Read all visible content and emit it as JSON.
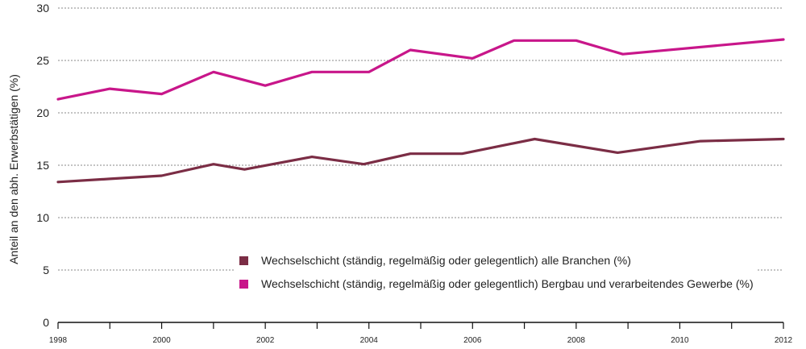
{
  "chart_data": {
    "type": "line",
    "title": "",
    "xlabel": "",
    "ylabel": "Anteil an den abh. Erwerbstätigen (%)",
    "x_range": [
      1998,
      2012
    ],
    "ylim": [
      0,
      30
    ],
    "y_ticks": [
      0,
      5,
      10,
      15,
      20,
      25,
      30
    ],
    "x_tick_labels": [
      "1998",
      "2000",
      "2002",
      "2004",
      "2006",
      "2008",
      "2010",
      "2012"
    ],
    "grid": "horizontal dotted",
    "legend_position": "bottom-center inside plot",
    "series": [
      {
        "name": "Wechselschicht (ständig, regelmäßig oder gelegentlich) alle Branchen (%)",
        "color": "#7b2d45",
        "points": [
          {
            "x": 1998,
            "y": 13.4
          },
          {
            "x": 1999,
            "y": 13.7
          },
          {
            "x": 2000,
            "y": 14.0
          },
          {
            "x": 2001,
            "y": 15.1
          },
          {
            "x": 2001.6,
            "y": 14.6
          },
          {
            "x": 2002.9,
            "y": 15.8
          },
          {
            "x": 2003.9,
            "y": 15.1
          },
          {
            "x": 2004.8,
            "y": 16.1
          },
          {
            "x": 2005.8,
            "y": 16.1
          },
          {
            "x": 2007.2,
            "y": 17.5
          },
          {
            "x": 2008.8,
            "y": 16.2
          },
          {
            "x": 2010.4,
            "y": 17.3
          },
          {
            "x": 2012,
            "y": 17.5
          }
        ]
      },
      {
        "name": "Wechselschicht (ständig, regelmäßig oder gelegentlich) Bergbau und verarbeitendes Gewerbe (%)",
        "color": "#c8168a",
        "points": [
          {
            "x": 1998,
            "y": 21.3
          },
          {
            "x": 1999,
            "y": 22.3
          },
          {
            "x": 2000,
            "y": 21.8
          },
          {
            "x": 2001,
            "y": 23.9
          },
          {
            "x": 2002,
            "y": 22.6
          },
          {
            "x": 2002.9,
            "y": 23.9
          },
          {
            "x": 2004,
            "y": 23.9
          },
          {
            "x": 2004.8,
            "y": 26.0
          },
          {
            "x": 2006,
            "y": 25.2
          },
          {
            "x": 2006.8,
            "y": 26.9
          },
          {
            "x": 2008,
            "y": 26.9
          },
          {
            "x": 2008.9,
            "y": 25.6
          },
          {
            "x": 2012,
            "y": 27.0
          }
        ]
      }
    ]
  }
}
